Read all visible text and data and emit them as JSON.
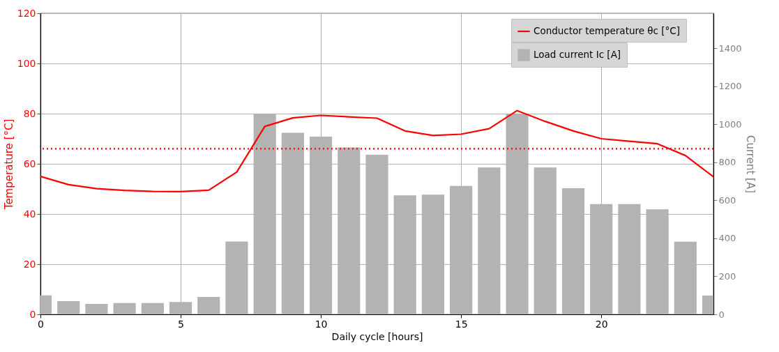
{
  "chart_data": {
    "type": "line",
    "xlabel": "Daily cycle [hours]",
    "ylabel": "Temperature [°C]",
    "y2label": "Current [A]",
    "x": [
      0,
      1,
      2,
      3,
      4,
      5,
      6,
      7,
      8,
      9,
      10,
      11,
      12,
      13,
      14,
      15,
      16,
      17,
      18,
      19,
      20,
      21,
      22,
      23,
      24
    ],
    "series": [
      {
        "name": "Conductor temperature θc [°C]",
        "color": "#ff0000",
        "values": [
          55.0,
          51.7,
          50.1,
          49.4,
          49.0,
          48.9,
          49.5,
          56.7,
          74.9,
          78.3,
          79.3,
          78.7,
          78.2,
          73.1,
          71.3,
          71.8,
          74.0,
          81.2,
          76.9,
          73.1,
          70.0,
          69.0,
          68.0,
          63.3,
          54.8
        ]
      },
      {
        "name": "Load current Ic [A]",
        "type": "bar",
        "axis": "y2",
        "color": "#b3b3b3",
        "values": [
          100,
          70,
          55,
          60,
          60,
          65,
          92,
          383,
          1055,
          955,
          935,
          878,
          840,
          626,
          630,
          676,
          773,
          1055,
          773,
          664,
          580,
          580,
          553,
          382,
          99
        ]
      }
    ],
    "xlim": [
      0,
      24
    ],
    "xticks": [
      0,
      5,
      10,
      15,
      20
    ],
    "ylim": [
      0,
      120
    ],
    "yticks": [
      0,
      20,
      40,
      60,
      80,
      100,
      120
    ],
    "y2lim": [
      0,
      1584
    ],
    "y2ticks": [
      0,
      200,
      400,
      600,
      800,
      1000,
      1200,
      1400
    ],
    "ref_lines": [
      {
        "axis": "y",
        "value": 66,
        "color": "#ff0000",
        "line_style": "dotted"
      }
    ],
    "grid": true,
    "legend": "top right"
  }
}
